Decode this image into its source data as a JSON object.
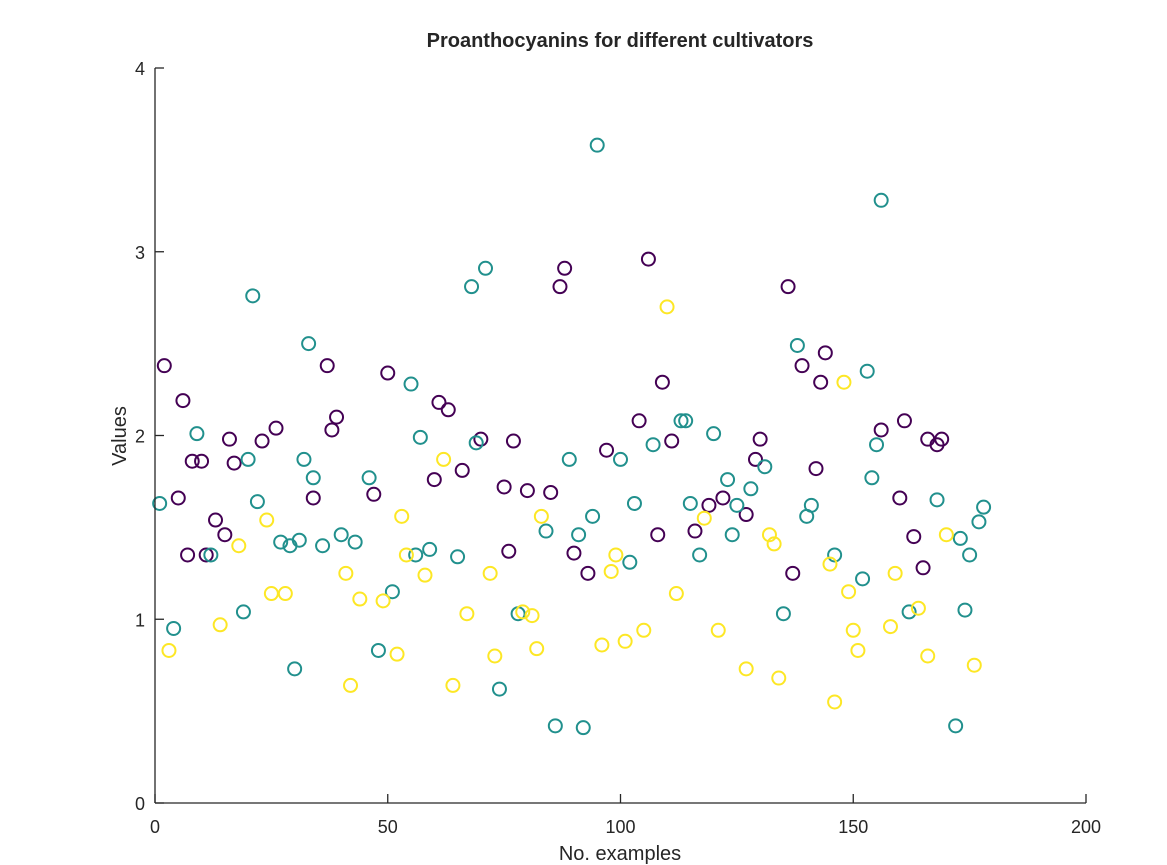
{
  "chart_data": {
    "type": "scatter",
    "title": "Proanthocyanins for different cultivators",
    "xlabel": "No. examples",
    "ylabel": "Values",
    "xlim": [
      0,
      200
    ],
    "ylim": [
      0,
      4
    ],
    "xticks": [
      "0",
      "50",
      "100",
      "150",
      "200"
    ],
    "yticks": [
      "0",
      "1",
      "2",
      "3",
      "4"
    ],
    "grid": false,
    "legend": "none",
    "marker": "open-circle",
    "colors": {
      "class1": "#440154",
      "class2": "#21908d",
      "class3": "#fde725"
    },
    "series": [
      {
        "color_key": "class1",
        "x": [
          2,
          5,
          6,
          7,
          8,
          10,
          11,
          13,
          15,
          16,
          17,
          23,
          26,
          34,
          37,
          38,
          39,
          47,
          50,
          60,
          61,
          63,
          66,
          70,
          75,
          76,
          77,
          80,
          85,
          87,
          88,
          90,
          93,
          97,
          104,
          106,
          108,
          109,
          111,
          116,
          119,
          122,
          127,
          129,
          130,
          136,
          137,
          139,
          142,
          143,
          144,
          156,
          160,
          161,
          163,
          165,
          166,
          168,
          169
        ],
        "y": [
          2.38,
          1.66,
          2.19,
          1.35,
          1.86,
          1.86,
          1.35,
          1.54,
          1.46,
          1.98,
          1.85,
          1.97,
          2.04,
          1.66,
          2.38,
          2.03,
          2.1,
          1.68,
          2.34,
          1.76,
          2.18,
          2.14,
          1.81,
          1.98,
          1.72,
          1.37,
          1.97,
          1.7,
          1.69,
          2.81,
          2.91,
          1.36,
          1.25,
          1.92,
          2.08,
          2.96,
          1.46,
          2.29,
          1.97,
          1.48,
          1.62,
          1.66,
          1.57,
          1.87,
          1.98,
          2.81,
          1.25,
          2.38,
          1.82,
          2.29,
          2.45,
          2.03,
          1.66,
          2.08,
          1.45,
          1.28,
          1.98,
          1.95,
          1.98
        ]
      },
      {
        "color_key": "class2",
        "x": [
          1,
          4,
          9,
          12,
          19,
          20,
          21,
          22,
          27,
          29,
          30,
          31,
          32,
          33,
          34,
          36,
          40,
          43,
          46,
          48,
          51,
          55,
          56,
          57,
          59,
          65,
          68,
          69,
          71,
          74,
          78,
          84,
          86,
          89,
          91,
          92,
          94,
          95,
          100,
          102,
          103,
          107,
          113,
          114,
          115,
          117,
          120,
          123,
          124,
          125,
          128,
          131,
          135,
          138,
          140,
          141,
          146,
          152,
          153,
          154,
          155,
          156,
          162,
          168,
          172,
          173,
          174,
          175,
          177,
          178
        ],
        "y": [
          1.63,
          0.95,
          2.01,
          1.35,
          1.04,
          1.87,
          2.76,
          1.64,
          1.42,
          1.4,
          0.73,
          1.43,
          1.87,
          2.5,
          1.77,
          1.4,
          1.46,
          1.42,
          1.77,
          0.83,
          1.15,
          2.28,
          1.35,
          1.99,
          1.38,
          1.34,
          2.81,
          1.96,
          2.91,
          0.62,
          1.03,
          1.48,
          0.42,
          1.87,
          1.46,
          0.41,
          1.56,
          3.58,
          1.87,
          1.31,
          1.63,
          1.95,
          2.08,
          2.08,
          1.63,
          1.35,
          2.01,
          1.76,
          1.46,
          1.62,
          1.71,
          1.83,
          1.03,
          2.49,
          1.56,
          1.62,
          1.35,
          1.22,
          2.35,
          1.77,
          1.95,
          3.28,
          1.04,
          1.65,
          0.42,
          1.44,
          1.05,
          1.35,
          1.53,
          1.61
        ]
      },
      {
        "color_key": "class3",
        "x": [
          3,
          14,
          18,
          24,
          25,
          28,
          41,
          42,
          44,
          49,
          52,
          53,
          54,
          58,
          62,
          64,
          67,
          72,
          73,
          79,
          81,
          82,
          83,
          96,
          98,
          99,
          101,
          105,
          110,
          112,
          118,
          121,
          127,
          132,
          133,
          134,
          145,
          146,
          148,
          149,
          150,
          151,
          158,
          159,
          164,
          166,
          170,
          176
        ],
        "y": [
          0.83,
          0.97,
          1.4,
          1.54,
          1.14,
          1.14,
          1.25,
          0.64,
          1.11,
          1.1,
          0.81,
          1.56,
          1.35,
          1.24,
          1.87,
          0.64,
          1.03,
          1.25,
          0.8,
          1.04,
          1.02,
          0.84,
          1.56,
          0.86,
          1.26,
          1.35,
          0.88,
          0.94,
          2.7,
          1.14,
          1.55,
          0.94,
          0.73,
          1.46,
          1.41,
          0.68,
          1.3,
          0.55,
          2.29,
          1.15,
          0.94,
          0.83,
          0.96,
          1.25,
          1.06,
          0.8,
          1.46,
          0.75
        ]
      }
    ]
  }
}
